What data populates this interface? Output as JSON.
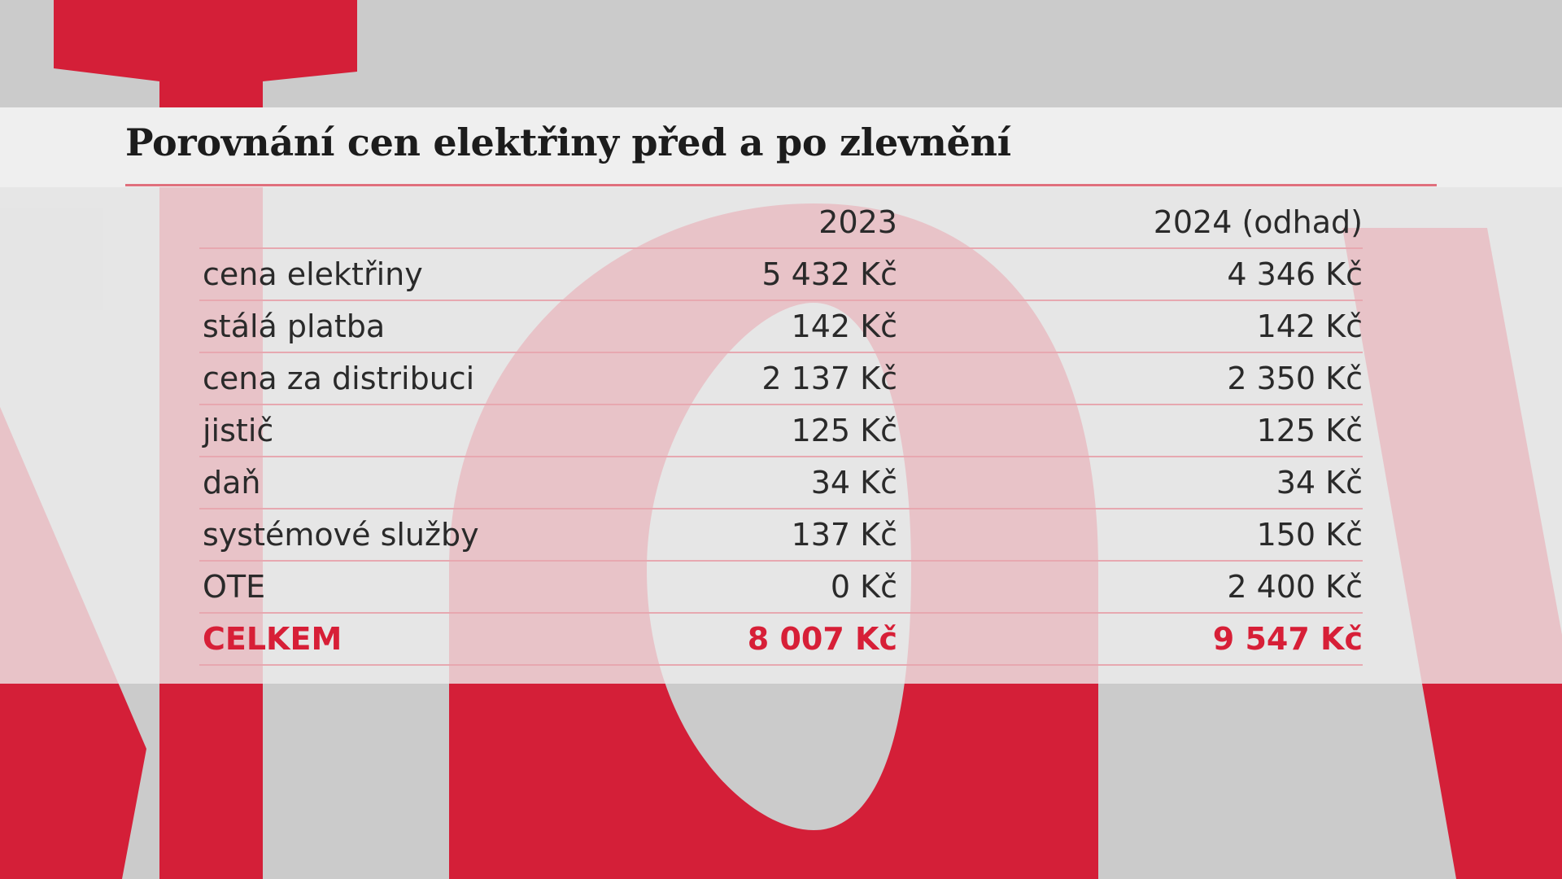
{
  "chart_data": {
    "type": "table",
    "title": "Porovnání cen elektřiny před a po zlevnění",
    "columns": [
      "",
      "2023",
      "2024 (odhad)"
    ],
    "rows": [
      {
        "label": "cena elektřiny",
        "values": [
          "5 432 Kč",
          "4 346 Kč"
        ],
        "numeric": [
          5432,
          4346
        ]
      },
      {
        "label": "stálá platba",
        "values": [
          "142 Kč",
          "142 Kč"
        ],
        "numeric": [
          142,
          142
        ]
      },
      {
        "label": "cena za distribuci",
        "values": [
          "2 137 Kč",
          "2 350 Kč"
        ],
        "numeric": [
          2137,
          2350
        ]
      },
      {
        "label": "jistič",
        "values": [
          "125 Kč",
          "125 Kč"
        ],
        "numeric": [
          125,
          125
        ]
      },
      {
        "label": "daň",
        "values": [
          "34 Kč",
          "34 Kč"
        ],
        "numeric": [
          34,
          34
        ]
      },
      {
        "label": "systémové služby",
        "values": [
          "137 Kč",
          "150 Kč"
        ],
        "numeric": [
          137,
          150
        ]
      },
      {
        "label": "OTE",
        "values": [
          "0 Kč",
          "2 400 Kč"
        ],
        "numeric": [
          0,
          2400
        ]
      }
    ],
    "total": {
      "label": "CELKEM",
      "values": [
        "8 007 Kč",
        "9 547 Kč"
      ],
      "numeric": [
        8007,
        9547
      ]
    }
  },
  "colors": {
    "accent_red": "#d71f37",
    "background_gray": "#cbcbcb",
    "panel_light": "#ececec",
    "rule_pink": "#e7a8b0"
  },
  "decor": {
    "background_logo": "ct24-logo-watermark"
  }
}
